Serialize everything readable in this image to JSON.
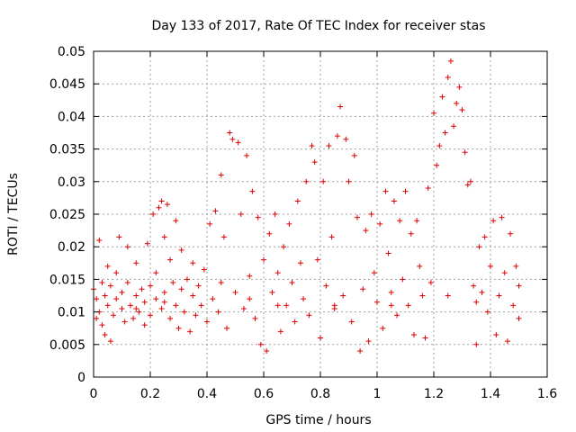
{
  "chart_data": {
    "type": "scatter",
    "title": "Day 133 of 2017, Rate Of TEC Index for receiver stas",
    "xlabel": "GPS time / hours",
    "ylabel": "ROTI / TECUs",
    "xlim": [
      0,
      1.6
    ],
    "ylim": [
      0,
      0.05
    ],
    "grid": true,
    "marker": "+",
    "series_color": "#e00000",
    "x_ticks": [
      "0",
      "0.2",
      "0.4",
      "0.6",
      "0.8",
      "1",
      "1.2",
      "1.4",
      "1.6"
    ],
    "y_ticks": [
      "0",
      "0.005",
      "0.01",
      "0.015",
      "0.02",
      "0.025",
      "0.03",
      "0.035",
      "0.04",
      "0.045",
      "0.05"
    ],
    "x_tick_values": [
      0,
      0.2,
      0.4,
      0.6,
      0.8,
      1.0,
      1.2,
      1.4,
      1.6
    ],
    "y_tick_values": [
      0,
      0.005,
      0.01,
      0.015,
      0.02,
      0.025,
      0.03,
      0.035,
      0.04,
      0.045,
      0.05
    ],
    "series": [
      {
        "name": "ROTI",
        "points": [
          [
            0.0,
            0.0135
          ],
          [
            0.01,
            0.009
          ],
          [
            0.01,
            0.012
          ],
          [
            0.02,
            0.021
          ],
          [
            0.02,
            0.01
          ],
          [
            0.03,
            0.0145
          ],
          [
            0.03,
            0.008
          ],
          [
            0.04,
            0.0125
          ],
          [
            0.04,
            0.0065
          ],
          [
            0.05,
            0.017
          ],
          [
            0.05,
            0.011
          ],
          [
            0.06,
            0.0055
          ],
          [
            0.06,
            0.014
          ],
          [
            0.07,
            0.0095
          ],
          [
            0.08,
            0.016
          ],
          [
            0.08,
            0.012
          ],
          [
            0.09,
            0.0215
          ],
          [
            0.1,
            0.0105
          ],
          [
            0.1,
            0.013
          ],
          [
            0.11,
            0.0085
          ],
          [
            0.12,
            0.02
          ],
          [
            0.12,
            0.0145
          ],
          [
            0.13,
            0.011
          ],
          [
            0.14,
            0.009
          ],
          [
            0.15,
            0.0125
          ],
          [
            0.15,
            0.0175
          ],
          [
            0.16,
            0.01
          ],
          [
            0.17,
            0.0135
          ],
          [
            0.18,
            0.008
          ],
          [
            0.18,
            0.0115
          ],
          [
            0.19,
            0.0205
          ],
          [
            0.2,
            0.014
          ],
          [
            0.2,
            0.0095
          ],
          [
            0.21,
            0.025
          ],
          [
            0.22,
            0.012
          ],
          [
            0.22,
            0.016
          ],
          [
            0.23,
            0.026
          ],
          [
            0.24,
            0.027
          ],
          [
            0.24,
            0.0105
          ],
          [
            0.25,
            0.0215
          ],
          [
            0.25,
            0.013
          ],
          [
            0.26,
            0.0265
          ],
          [
            0.27,
            0.009
          ],
          [
            0.27,
            0.018
          ],
          [
            0.28,
            0.0145
          ],
          [
            0.29,
            0.024
          ],
          [
            0.29,
            0.011
          ],
          [
            0.3,
            0.0075
          ],
          [
            0.31,
            0.0135
          ],
          [
            0.31,
            0.0195
          ],
          [
            0.32,
            0.01
          ],
          [
            0.33,
            0.015
          ],
          [
            0.34,
            0.007
          ],
          [
            0.35,
            0.0125
          ],
          [
            0.35,
            0.0175
          ],
          [
            0.36,
            0.0095
          ],
          [
            0.37,
            0.014
          ],
          [
            0.38,
            0.011
          ],
          [
            0.39,
            0.0165
          ],
          [
            0.4,
            0.0085
          ],
          [
            0.41,
            0.0235
          ],
          [
            0.42,
            0.012
          ],
          [
            0.43,
            0.0255
          ],
          [
            0.44,
            0.01
          ],
          [
            0.45,
            0.031
          ],
          [
            0.45,
            0.0145
          ],
          [
            0.46,
            0.0215
          ],
          [
            0.47,
            0.0075
          ],
          [
            0.48,
            0.0375
          ],
          [
            0.49,
            0.0365
          ],
          [
            0.5,
            0.013
          ],
          [
            0.51,
            0.036
          ],
          [
            0.52,
            0.025
          ],
          [
            0.53,
            0.0105
          ],
          [
            0.54,
            0.034
          ],
          [
            0.55,
            0.0155
          ],
          [
            0.56,
            0.0285
          ],
          [
            0.57,
            0.009
          ],
          [
            0.58,
            0.0245
          ],
          [
            0.59,
            0.005
          ],
          [
            0.6,
            0.018
          ],
          [
            0.61,
            0.004
          ],
          [
            0.62,
            0.022
          ],
          [
            0.63,
            0.013
          ],
          [
            0.64,
            0.025
          ],
          [
            0.65,
            0.016
          ],
          [
            0.66,
            0.007
          ],
          [
            0.67,
            0.02
          ],
          [
            0.68,
            0.011
          ],
          [
            0.69,
            0.0235
          ],
          [
            0.7,
            0.0145
          ],
          [
            0.71,
            0.0085
          ],
          [
            0.72,
            0.027
          ],
          [
            0.73,
            0.0175
          ],
          [
            0.74,
            0.012
          ],
          [
            0.75,
            0.03
          ],
          [
            0.76,
            0.0095
          ],
          [
            0.77,
            0.0355
          ],
          [
            0.78,
            0.033
          ],
          [
            0.79,
            0.018
          ],
          [
            0.8,
            0.006
          ],
          [
            0.81,
            0.03
          ],
          [
            0.82,
            0.014
          ],
          [
            0.83,
            0.0355
          ],
          [
            0.84,
            0.0215
          ],
          [
            0.85,
            0.0105
          ],
          [
            0.86,
            0.037
          ],
          [
            0.87,
            0.0415
          ],
          [
            0.88,
            0.0125
          ],
          [
            0.89,
            0.0365
          ],
          [
            0.9,
            0.03
          ],
          [
            0.91,
            0.0085
          ],
          [
            0.92,
            0.034
          ],
          [
            0.93,
            0.0245
          ],
          [
            0.94,
            0.004
          ],
          [
            0.95,
            0.0135
          ],
          [
            0.96,
            0.0225
          ],
          [
            0.97,
            0.0055
          ],
          [
            0.98,
            0.025
          ],
          [
            0.99,
            0.016
          ],
          [
            1.0,
            0.0115
          ],
          [
            1.01,
            0.0235
          ],
          [
            1.02,
            0.0075
          ],
          [
            1.03,
            0.0285
          ],
          [
            1.04,
            0.019
          ],
          [
            1.05,
            0.013
          ],
          [
            1.06,
            0.027
          ],
          [
            1.07,
            0.0095
          ],
          [
            1.08,
            0.024
          ],
          [
            1.09,
            0.015
          ],
          [
            1.1,
            0.0285
          ],
          [
            1.11,
            0.011
          ],
          [
            1.12,
            0.022
          ],
          [
            1.13,
            0.0065
          ],
          [
            1.14,
            0.024
          ],
          [
            1.15,
            0.017
          ],
          [
            1.16,
            0.0125
          ],
          [
            1.17,
            0.006
          ],
          [
            1.18,
            0.029
          ],
          [
            1.19,
            0.0145
          ],
          [
            1.2,
            0.0405
          ],
          [
            1.21,
            0.0325
          ],
          [
            1.22,
            0.0355
          ],
          [
            1.23,
            0.043
          ],
          [
            1.24,
            0.0375
          ],
          [
            1.25,
            0.046
          ],
          [
            1.26,
            0.0485
          ],
          [
            1.27,
            0.0385
          ],
          [
            1.28,
            0.042
          ],
          [
            1.29,
            0.0445
          ],
          [
            1.3,
            0.041
          ],
          [
            1.31,
            0.0345
          ],
          [
            1.32,
            0.0295
          ],
          [
            1.33,
            0.03
          ],
          [
            1.34,
            0.014
          ],
          [
            1.35,
            0.005
          ],
          [
            1.36,
            0.02
          ],
          [
            1.37,
            0.013
          ],
          [
            1.38,
            0.0215
          ],
          [
            1.39,
            0.01
          ],
          [
            1.4,
            0.017
          ],
          [
            1.41,
            0.024
          ],
          [
            1.42,
            0.0065
          ],
          [
            1.43,
            0.0125
          ],
          [
            1.44,
            0.0245
          ],
          [
            1.45,
            0.016
          ],
          [
            1.46,
            0.0055
          ],
          [
            1.47,
            0.022
          ],
          [
            1.48,
            0.011
          ],
          [
            1.49,
            0.017
          ],
          [
            1.5,
            0.014
          ],
          [
            1.5,
            0.009
          ],
          [
            1.05,
            0.011
          ],
          [
            0.55,
            0.012
          ],
          [
            0.25,
            0.0115
          ],
          [
            0.85,
            0.011
          ],
          [
            1.25,
            0.0125
          ],
          [
            1.35,
            0.0115
          ],
          [
            0.15,
            0.0105
          ],
          [
            0.65,
            0.011
          ]
        ]
      }
    ]
  }
}
